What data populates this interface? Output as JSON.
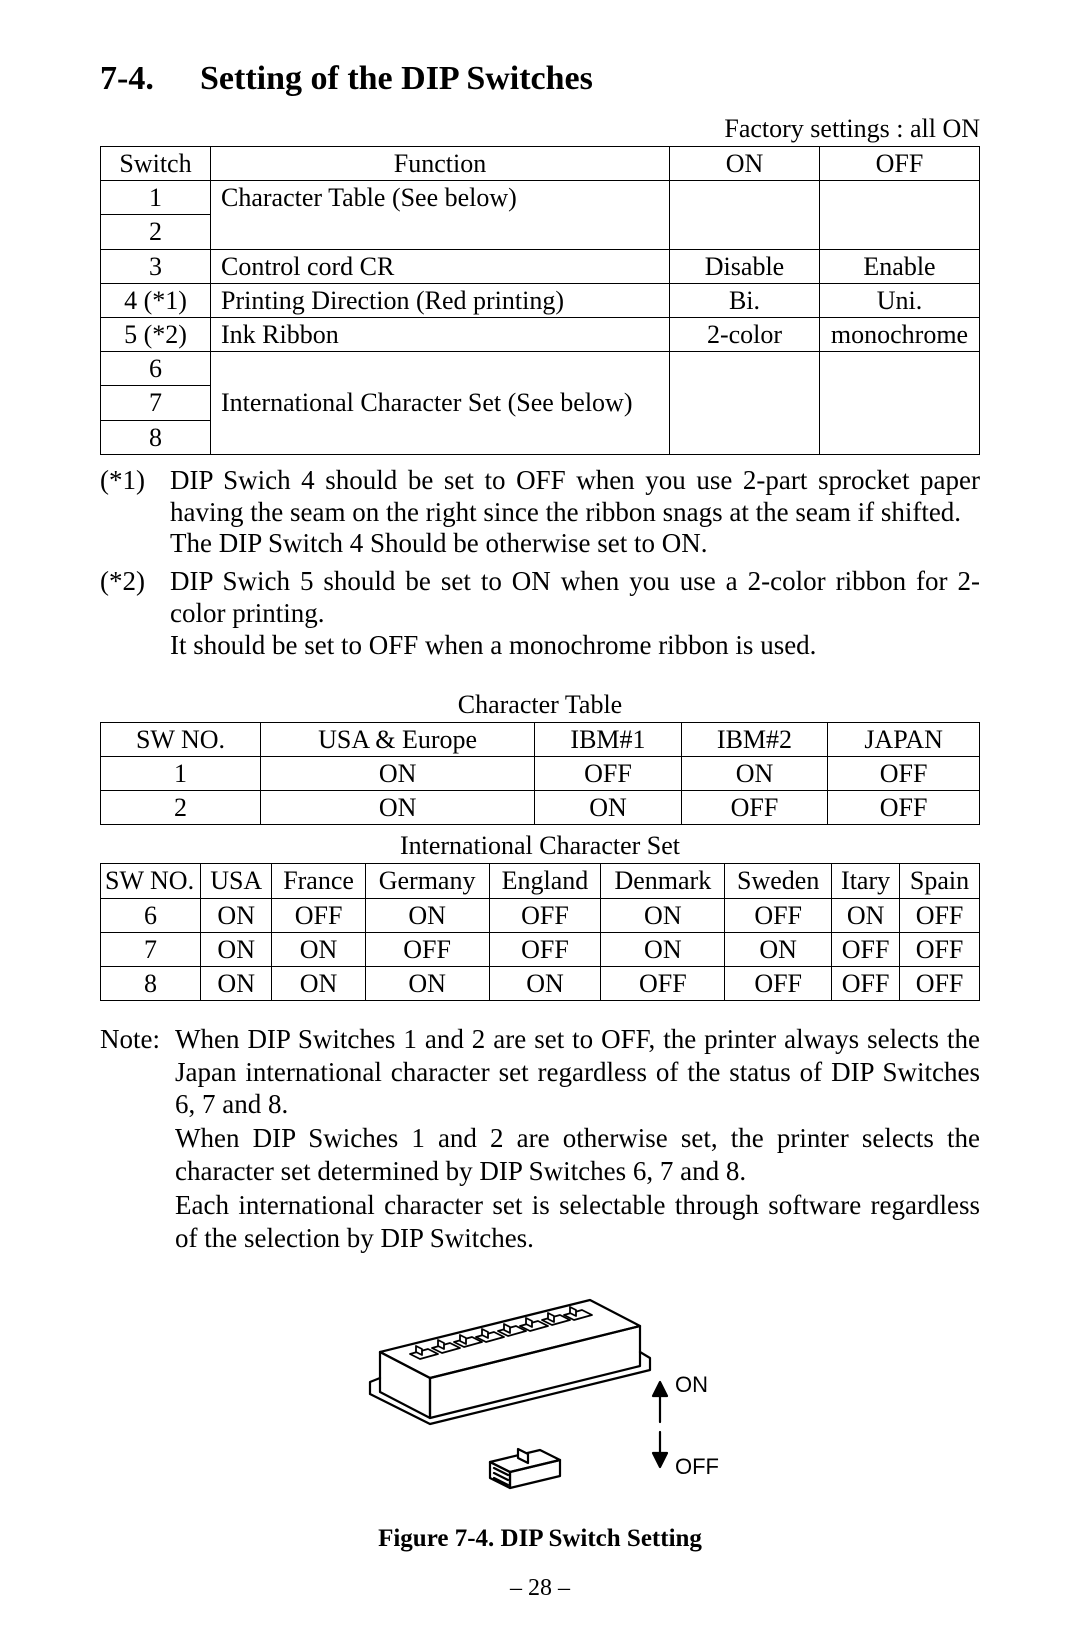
{
  "section_number": "7-4.",
  "section_title": "Setting of the DIP Switches",
  "factory_note": "Factory settings : all ON",
  "main_table": {
    "headers": [
      "Switch",
      "Function",
      "ON",
      "OFF"
    ],
    "rows": [
      {
        "sw": "1",
        "func": "Character Table (See below)",
        "on": "",
        "off": "",
        "rowspan_func": 2,
        "rowspan_on": 2,
        "rowspan_off": 2
      },
      {
        "sw": "2"
      },
      {
        "sw": "3",
        "func": "Control cord CR",
        "on": "Disable",
        "off": "Enable"
      },
      {
        "sw": "4 (*1)",
        "func": "Printing Direction (Red printing)",
        "on": "Bi.",
        "off": "Uni."
      },
      {
        "sw": "5 (*2)",
        "func": "Ink Ribbon",
        "on": "2-color",
        "off": "monochrome"
      },
      {
        "sw": "6",
        "func": "International Character Set (See below)",
        "on": "",
        "off": "",
        "rowspan_func": 3,
        "rowspan_on": 3,
        "rowspan_off": 3
      },
      {
        "sw": "7"
      },
      {
        "sw": "8"
      }
    ]
  },
  "footnotes": [
    {
      "label": "(*1)",
      "lines": [
        "DIP Swich 4 should be set to OFF when you use 2-part sprocket paper having the seam on the right since the ribbon snags at the seam if shifted.",
        "The DIP Switch 4 Should be otherwise set to ON."
      ]
    },
    {
      "label": "(*2)",
      "lines": [
        "DIP Swich 5 should be set to ON when you use a 2-color ribbon for 2-color printing.",
        "It should be set to OFF when a monochrome ribbon is used."
      ]
    }
  ],
  "char_table": {
    "caption": "Character Table",
    "headers": [
      "SW NO.",
      "USA & Europe",
      "IBM#1",
      "IBM#2",
      "JAPAN"
    ],
    "rows": [
      [
        "1",
        "ON",
        "OFF",
        "ON",
        "OFF"
      ],
      [
        "2",
        "ON",
        "ON",
        "OFF",
        "OFF"
      ]
    ]
  },
  "intl_table": {
    "caption": "International Character Set",
    "headers": [
      "SW NO.",
      "USA",
      "France",
      "Germany",
      "England",
      "Denmark",
      "Sweden",
      "Itary",
      "Spain"
    ],
    "rows": [
      [
        "6",
        "ON",
        "OFF",
        "ON",
        "OFF",
        "ON",
        "OFF",
        "ON",
        "OFF"
      ],
      [
        "7",
        "ON",
        "ON",
        "OFF",
        "OFF",
        "ON",
        "ON",
        "OFF",
        "OFF"
      ],
      [
        "8",
        "ON",
        "ON",
        "ON",
        "ON",
        "OFF",
        "OFF",
        "OFF",
        "OFF"
      ]
    ]
  },
  "note": {
    "label": "Note:",
    "lines": [
      "When DIP Switches 1 and 2 are set to OFF, the printer always selects the Japan international character set regardless of the status of DIP Switches 6, 7 and 8.",
      "When DIP Swiches 1 and 2 are otherwise set, the printer selects the character set determined by DIP Switches 6, 7 and 8.",
      "Each international character set is selectable through software regardless of the selection by DIP Switches."
    ]
  },
  "figure": {
    "caption": "Figure 7-4. DIP Switch Setting",
    "on_label": "ON",
    "off_label": "OFF"
  },
  "page_number": "– 28 –"
}
